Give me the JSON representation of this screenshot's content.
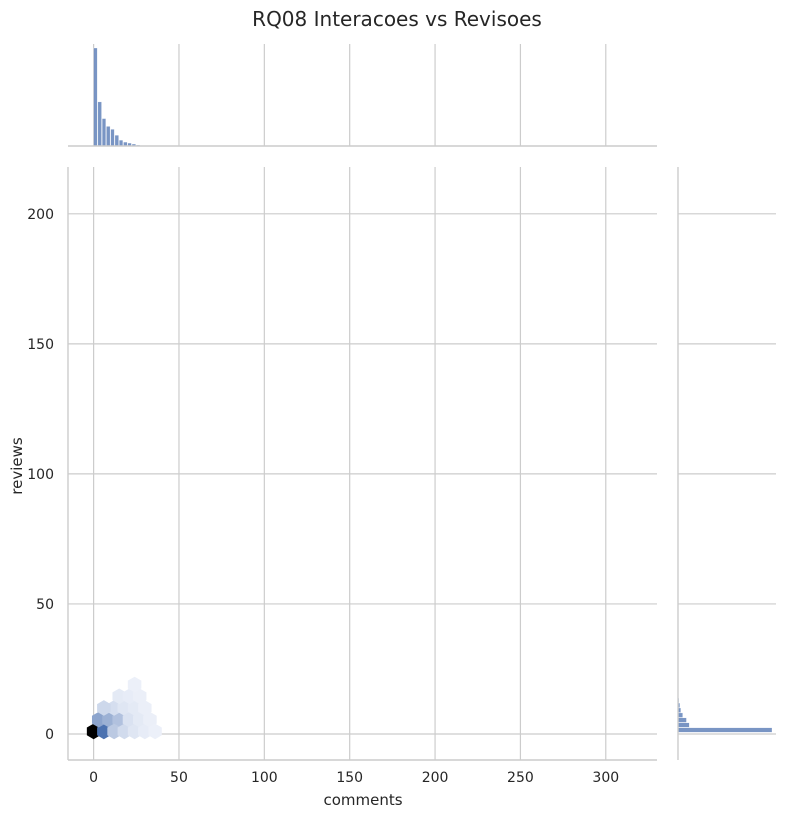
{
  "chart_data": {
    "type": "hexbin-jointplot",
    "title": "RQ08 Interacoes vs Revisoes",
    "xlabel": "comments",
    "ylabel": "reviews",
    "xlim": [
      -15,
      330
    ],
    "ylim": [
      -10,
      218
    ],
    "xticks": [
      0,
      50,
      100,
      150,
      200,
      250,
      300
    ],
    "yticks": [
      0,
      50,
      100,
      150,
      200
    ],
    "grid": true,
    "hex_bins": [
      {
        "x": 0,
        "y": 1,
        "density": 1.0
      },
      {
        "x": 6,
        "y": 1,
        "density": 0.55
      },
      {
        "x": 3,
        "y": 5.5,
        "density": 0.28
      },
      {
        "x": 9,
        "y": 5.5,
        "density": 0.22
      },
      {
        "x": 15,
        "y": 5.5,
        "density": 0.15
      },
      {
        "x": 12,
        "y": 1,
        "density": 0.12
      },
      {
        "x": 18,
        "y": 1,
        "density": 0.06
      },
      {
        "x": 12,
        "y": 10,
        "density": 0.05
      },
      {
        "x": 6,
        "y": 10,
        "density": 0.07
      },
      {
        "x": 18,
        "y": 10,
        "density": 0.03
      },
      {
        "x": 21,
        "y": 5.5,
        "density": 0.04
      },
      {
        "x": 24,
        "y": 1,
        "density": 0.03
      },
      {
        "x": 24,
        "y": 10,
        "density": 0.02
      },
      {
        "x": 27,
        "y": 5.5,
        "density": 0.02
      },
      {
        "x": 30,
        "y": 1,
        "density": 0.015
      },
      {
        "x": 15,
        "y": 14.5,
        "density": 0.02
      },
      {
        "x": 21,
        "y": 14.5,
        "density": 0.015
      },
      {
        "x": 30,
        "y": 10,
        "density": 0.01
      },
      {
        "x": 27,
        "y": 14.5,
        "density": 0.01
      },
      {
        "x": 33,
        "y": 5.5,
        "density": 0.01
      },
      {
        "x": 24,
        "y": 19,
        "density": 0.008
      },
      {
        "x": 36,
        "y": 1,
        "density": 0.008
      }
    ],
    "marginal_x": {
      "bin_width": 2.5,
      "bin_starts": [
        0,
        2.5,
        5,
        7.5,
        10,
        12.5,
        15,
        17.5,
        20,
        22.5,
        25,
        27.5
      ],
      "counts": [
        100,
        45,
        28,
        20,
        17,
        11,
        6,
        4,
        3,
        2,
        1,
        0.5
      ]
    },
    "marginal_y": {
      "bin_width": 1.9,
      "bin_starts": [
        0.5,
        2.4,
        4.3,
        6.2,
        8.1,
        10,
        11.9
      ],
      "counts": [
        100,
        12,
        9,
        5,
        3,
        2,
        1
      ]
    }
  }
}
